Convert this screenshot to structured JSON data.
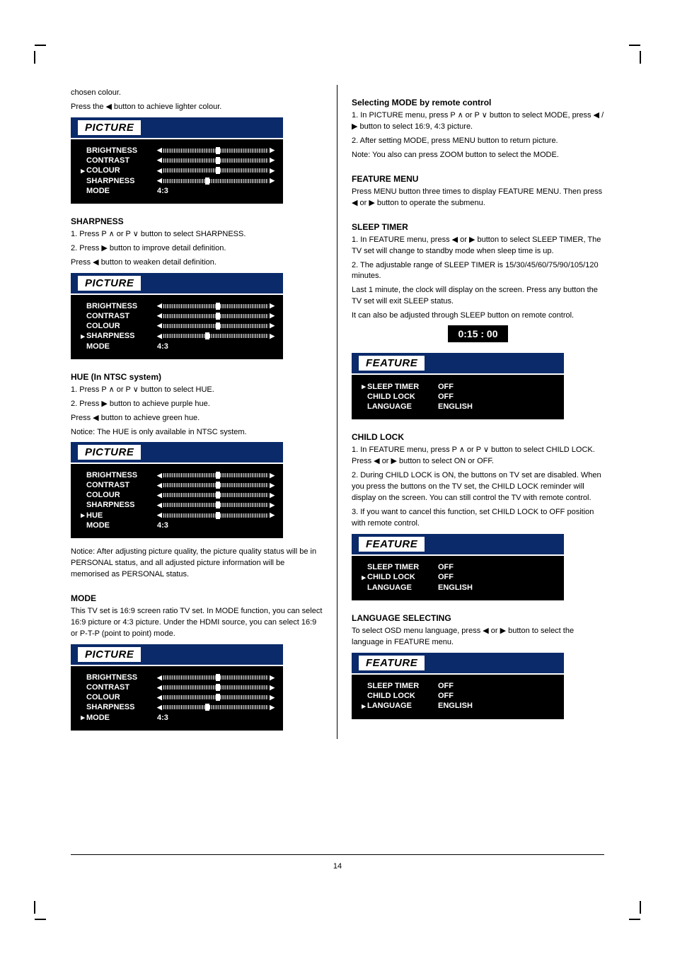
{
  "page_number": "14",
  "crop_marks_color": "#000000",
  "body_text_color": "#000000",
  "osd_bg": "#000000",
  "osd_title_bg": "#0a2a6a",
  "osd_text": "#ffffff",
  "left": {
    "intro_a": "chosen colour.",
    "intro_b": "Press the ◀ button to achieve lighter colour.",
    "picture1": {
      "title": "PICTURE",
      "rows": [
        {
          "label": "BRIGHTNESS",
          "type": "slider",
          "pos": 50
        },
        {
          "label": "CONTRAST",
          "type": "slider",
          "pos": 50
        },
        {
          "label": "COLOUR",
          "type": "slider",
          "pos": 50,
          "cursor": true
        },
        {
          "label": "SHARPNESS",
          "type": "slider",
          "pos": 40
        },
        {
          "label": "MODE",
          "type": "value",
          "value": "4:3"
        }
      ]
    },
    "sharp_hdr": "SHARPNESS",
    "sharp_step1a": "1. Press P ∧ or P ∨ button to select SHARPNESS.",
    "sharp_step1b": "2. Press ▶ button to improve detail definition.",
    "sharp_step1c": "Press ◀ button to weaken detail definition.",
    "picture2": {
      "title": "PICTURE",
      "rows": [
        {
          "label": "BRIGHTNESS",
          "type": "slider",
          "pos": 50
        },
        {
          "label": "CONTRAST",
          "type": "slider",
          "pos": 50
        },
        {
          "label": "COLOUR",
          "type": "slider",
          "pos": 50
        },
        {
          "label": "SHARPNESS",
          "type": "slider",
          "pos": 40,
          "cursor": true
        },
        {
          "label": "MODE",
          "type": "value",
          "value": "4:3"
        }
      ]
    },
    "hue_hdr": "HUE (In NTSC system)",
    "hue_1": "1. Press P ∧ or P ∨ button to select HUE.",
    "hue_2": "2. Press ▶ button to achieve purple hue.",
    "hue_3": "Press ◀ button to achieve green hue.",
    "hue_note": "Notice: The HUE is only available in NTSC system.",
    "picture3": {
      "title": "PICTURE",
      "rows": [
        {
          "label": "BRIGHTNESS",
          "type": "slider",
          "pos": 50
        },
        {
          "label": "CONTRAST",
          "type": "slider",
          "pos": 50
        },
        {
          "label": "COLOUR",
          "type": "slider",
          "pos": 50
        },
        {
          "label": "SHARPNESS",
          "type": "slider",
          "pos": 50
        },
        {
          "label": "HUE",
          "type": "slider",
          "pos": 50,
          "cursor": true
        },
        {
          "label": "MODE",
          "type": "value",
          "value": "4:3"
        }
      ]
    },
    "note2": "Notice: After adjusting picture quality, the picture quality status will be in PERSONAL status, and all adjusted picture information will be memorised as PERSONAL status.",
    "mode_hdr": "MODE",
    "mode_txt": "This TV set is 16:9 screen ratio TV set. In MODE function, you can select 16:9 picture or 4:3 picture. Under the HDMI source, you can select 16:9 or P-T-P (point to point) mode.",
    "picture4": {
      "title": "PICTURE",
      "rows": [
        {
          "label": "BRIGHTNESS",
          "type": "slider",
          "pos": 50
        },
        {
          "label": "CONTRAST",
          "type": "slider",
          "pos": 50
        },
        {
          "label": "COLOUR",
          "type": "slider",
          "pos": 50
        },
        {
          "label": "SHARPNESS",
          "type": "slider",
          "pos": 40
        },
        {
          "label": "MODE",
          "type": "value",
          "value": "4:3",
          "cursor": true
        }
      ]
    }
  },
  "right": {
    "mode_hdr": "Selecting MODE by remote control",
    "mode_1": "1. In PICTURE menu, press P ∧ or P ∨ button to select MODE, press ◀ / ▶ button to select 16:9, 4:3 picture.",
    "mode_2": "2. After setting MODE, press MENU button to return picture.",
    "mode_3": "Note: You also can press ZOOM button to select the MODE.",
    "feat_hdr": "FEATURE MENU",
    "feat_intro": "Press MENU button three times to display FEATURE MENU. Then press ◀ or ▶ button to operate the submenu.",
    "sleep_hdr": "SLEEP TIMER",
    "sleep_1": "1. In FEATURE menu, press ◀ or ▶ button to select SLEEP TIMER, The TV set will change to standby mode when sleep time is up.",
    "sleep_2": "2. The adjustable range of SLEEP TIMER is 15/30/45/60/75/90/105/120 minutes.",
    "sleep_3": "Last 1 minute, the clock will display on the screen. Press any button the TV set will exit SLEEP status.",
    "sleep_4": "It can also be adjusted through SLEEP button on remote control.",
    "timer_value": "0:15 : 00",
    "feature1": {
      "title": "FEATURE",
      "rows": [
        {
          "label": "SLEEP TIMER",
          "value": "OFF",
          "cursor": true
        },
        {
          "label": "CHILD LOCK",
          "value": "OFF"
        },
        {
          "label": "LANGUAGE",
          "value": "ENGLISH"
        }
      ]
    },
    "child_hdr": "CHILD LOCK",
    "child_1": "1. In FEATURE menu, press P ∧ or P ∨ button to select CHILD LOCK. Press ◀ or ▶ button to select ON or OFF.",
    "child_2": "2. During CHILD LOCK is ON, the buttons on TV set are disabled. When you press the buttons on the TV set, the CHILD LOCK reminder will display on the screen. You can still control the TV with remote control.",
    "child_3": "3. If you want to cancel this function, set CHILD LOCK to OFF position with remote control.",
    "feature2": {
      "title": "FEATURE",
      "rows": [
        {
          "label": "SLEEP TIMER",
          "value": "OFF"
        },
        {
          "label": "CHILD LOCK",
          "value": "OFF",
          "cursor": true
        },
        {
          "label": "LANGUAGE",
          "value": "ENGLISH"
        }
      ]
    },
    "lang_hdr": "LANGUAGE SELECTING",
    "lang_1": "To select OSD menu language, press ◀ or ▶ button to select the language in FEATURE menu.",
    "feature3": {
      "title": "FEATURE",
      "rows": [
        {
          "label": "SLEEP TIMER",
          "value": "OFF"
        },
        {
          "label": "CHILD LOCK",
          "value": "OFF"
        },
        {
          "label": "LANGUAGE",
          "value": "ENGLISH",
          "cursor": true
        }
      ]
    }
  }
}
